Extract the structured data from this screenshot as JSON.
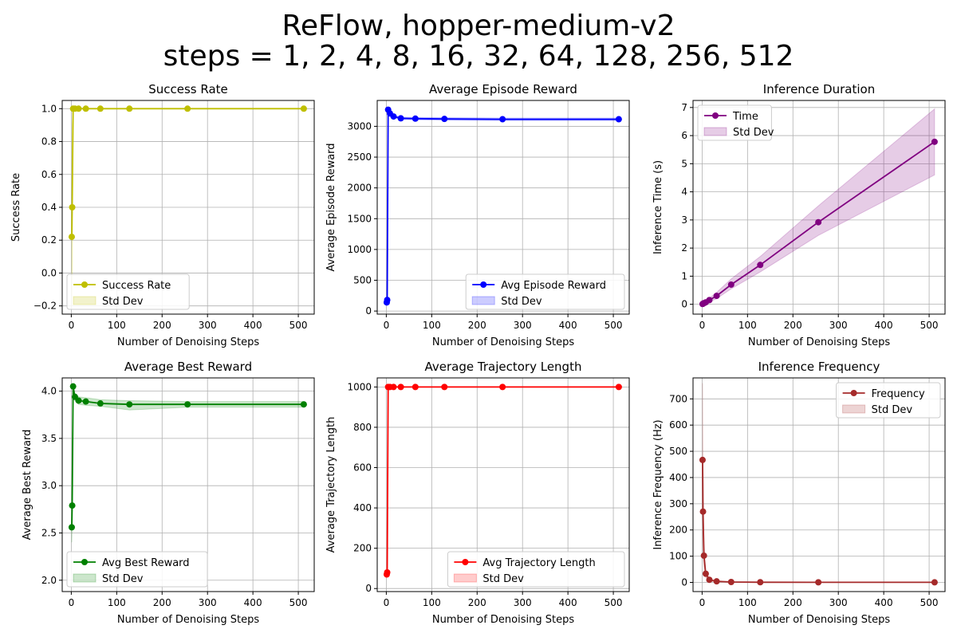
{
  "figure": {
    "title_line1": "ReFlow, hopper-medium-v2",
    "title_line2": "steps = 1, 2, 4, 8, 16, 32, 64, 128, 256, 512"
  },
  "colors": {
    "success": "#bfbf00",
    "reward": "#0000ff",
    "time": "#800080",
    "best": "#008000",
    "traj": "#ff0000",
    "freq": "#a52a2a",
    "grid": "#b0b0b0"
  },
  "chart_data": [
    {
      "type": "line",
      "title": "Success Rate",
      "xlabel": "Number of Denoising Steps",
      "ylabel": "Success Rate",
      "x": [
        1,
        2,
        4,
        8,
        16,
        32,
        64,
        128,
        256,
        512
      ],
      "series": [
        {
          "name": "Success Rate",
          "values": [
            0.22,
            0.4,
            1.0,
            1.0,
            1.0,
            1.0,
            1.0,
            1.0,
            1.0,
            1.0
          ]
        }
      ],
      "band": {
        "name": "Std Dev",
        "lower": [
          -0.2,
          -0.1,
          1.0,
          1.0,
          1.0,
          1.0,
          1.0,
          1.0,
          1.0,
          1.0
        ],
        "upper": [
          0.64,
          0.9,
          1.0,
          1.0,
          1.0,
          1.0,
          1.0,
          1.0,
          1.0,
          1.0
        ]
      },
      "xlim": [
        -20,
        535
      ],
      "ylim": [
        -0.25,
        1.05
      ],
      "xticks": [
        0,
        100,
        200,
        300,
        400,
        500
      ],
      "yticks": [
        -0.2,
        0.0,
        0.2,
        0.4,
        0.6,
        0.8,
        1.0
      ],
      "ytick_labels": [
        "−0.2",
        "0.0",
        "0.2",
        "0.4",
        "0.6",
        "0.8",
        "1.0"
      ],
      "grid": true,
      "legend_position": "lower-left"
    },
    {
      "type": "line",
      "title": "Average Episode Reward",
      "xlabel": "Number of Denoising Steps",
      "ylabel": "Average Episode Reward",
      "x": [
        1,
        2,
        4,
        8,
        16,
        32,
        64,
        128,
        256,
        512
      ],
      "series": [
        {
          "name": "Avg Episode Reward",
          "values": [
            140,
            180,
            3270,
            3210,
            3160,
            3130,
            3125,
            3120,
            3115,
            3115
          ]
        }
      ],
      "band": {
        "name": "Std Dev",
        "lower": [
          120,
          160,
          3250,
          3190,
          3140,
          3110,
          3105,
          3100,
          3095,
          3095
        ],
        "upper": [
          160,
          200,
          3290,
          3230,
          3180,
          3150,
          3145,
          3140,
          3135,
          3135
        ]
      },
      "xlim": [
        -20,
        535
      ],
      "ylim": [
        -50,
        3420
      ],
      "xticks": [
        0,
        100,
        200,
        300,
        400,
        500
      ],
      "yticks": [
        0,
        500,
        1000,
        1500,
        2000,
        2500,
        3000
      ],
      "ytick_labels": [
        "0",
        "500",
        "1000",
        "1500",
        "2000",
        "2500",
        "3000"
      ],
      "grid": true,
      "legend_position": "lower-right"
    },
    {
      "type": "line",
      "title": "Inference Duration",
      "xlabel": "Number of Denoising Steps",
      "ylabel": "Inference Time (s)",
      "x": [
        1,
        2,
        4,
        8,
        16,
        32,
        64,
        128,
        256,
        512
      ],
      "series": [
        {
          "name": "Time",
          "values": [
            0.01,
            0.02,
            0.04,
            0.07,
            0.15,
            0.3,
            0.7,
            1.4,
            2.92,
            5.78
          ]
        }
      ],
      "band": {
        "name": "Std Dev",
        "lower": [
          0.0,
          0.0,
          0.0,
          0.01,
          0.08,
          0.2,
          0.55,
          1.15,
          2.45,
          4.6
        ],
        "upper": [
          0.02,
          0.04,
          0.08,
          0.13,
          0.22,
          0.42,
          0.9,
          1.7,
          3.5,
          6.95
        ]
      },
      "xlim": [
        -20,
        535
      ],
      "ylim": [
        -0.35,
        7.25
      ],
      "xticks": [
        0,
        100,
        200,
        300,
        400,
        500
      ],
      "yticks": [
        0,
        1,
        2,
        3,
        4,
        5,
        6,
        7
      ],
      "ytick_labels": [
        "0",
        "1",
        "2",
        "3",
        "4",
        "5",
        "6",
        "7"
      ],
      "grid": true,
      "legend_position": "top-left"
    },
    {
      "type": "line",
      "title": "Average Best Reward",
      "xlabel": "Number of Denoising Steps",
      "ylabel": "Average Best Reward",
      "x": [
        1,
        2,
        4,
        8,
        16,
        32,
        64,
        128,
        256,
        512
      ],
      "series": [
        {
          "name": "Avg Best Reward",
          "values": [
            2.56,
            2.79,
            4.05,
            3.94,
            3.9,
            3.89,
            3.87,
            3.86,
            3.86,
            3.86
          ]
        }
      ],
      "band": {
        "name": "Std Dev",
        "lower": [
          2.4,
          2.6,
          4.03,
          3.9,
          3.86,
          3.85,
          3.84,
          3.8,
          3.83,
          3.83
        ],
        "upper": [
          2.72,
          2.98,
          4.07,
          3.98,
          3.94,
          3.93,
          3.91,
          3.9,
          3.89,
          3.89
        ]
      },
      "xlim": [
        -20,
        535
      ],
      "ylim": [
        1.88,
        4.14
      ],
      "xticks": [
        0,
        100,
        200,
        300,
        400,
        500
      ],
      "yticks": [
        2.0,
        2.5,
        3.0,
        3.5,
        4.0
      ],
      "ytick_labels": [
        "2.0",
        "2.5",
        "3.0",
        "3.5",
        "4.0"
      ],
      "grid": true,
      "legend_position": "lower-left"
    },
    {
      "type": "line",
      "title": "Average Trajectory Length",
      "xlabel": "Number of Denoising Steps",
      "ylabel": "Average Trajectory Length",
      "x": [
        1,
        2,
        4,
        8,
        16,
        32,
        64,
        128,
        256,
        512
      ],
      "series": [
        {
          "name": "Avg Trajectory Length",
          "values": [
            70,
            80,
            1000,
            1000,
            1000,
            1000,
            1000,
            1000,
            1000,
            1000
          ]
        }
      ],
      "band": {
        "name": "Std Dev",
        "lower": [
          60,
          70,
          1000,
          1000,
          1000,
          1000,
          1000,
          1000,
          1000,
          1000
        ],
        "upper": [
          80,
          90,
          1000,
          1000,
          1000,
          1000,
          1000,
          1000,
          1000,
          1000
        ]
      },
      "xlim": [
        -20,
        535
      ],
      "ylim": [
        -15,
        1045
      ],
      "xticks": [
        0,
        100,
        200,
        300,
        400,
        500
      ],
      "yticks": [
        0,
        200,
        400,
        600,
        800,
        1000
      ],
      "ytick_labels": [
        "0",
        "200",
        "400",
        "600",
        "800",
        "1000"
      ],
      "grid": true,
      "legend_position": "lower-right"
    },
    {
      "type": "line",
      "title": "Inference Frequency",
      "xlabel": "Number of Denoising Steps",
      "ylabel": "Inference Frequency (Hz)",
      "x": [
        1,
        2,
        4,
        8,
        16,
        32,
        64,
        128,
        256,
        512
      ],
      "series": [
        {
          "name": "Frequency",
          "values": [
            467,
            270,
            102,
            33,
            10,
            4,
            1.5,
            0.7,
            0.35,
            0.17
          ]
        }
      ],
      "band": {
        "name": "Std Dev",
        "lower": [
          180,
          120,
          60,
          20,
          5,
          2,
          1,
          0.5,
          0.3,
          0.1
        ],
        "upper": [
          760,
          420,
          145,
          46,
          15,
          6,
          2,
          0.9,
          0.4,
          0.2
        ]
      },
      "xlim": [
        -20,
        535
      ],
      "ylim": [
        -35,
        780
      ],
      "xticks": [
        0,
        100,
        200,
        300,
        400,
        500
      ],
      "yticks": [
        0,
        100,
        200,
        300,
        400,
        500,
        600,
        700
      ],
      "ytick_labels": [
        "0",
        "100",
        "200",
        "300",
        "400",
        "500",
        "600",
        "700"
      ],
      "grid": true,
      "legend_position": "top-right"
    }
  ]
}
